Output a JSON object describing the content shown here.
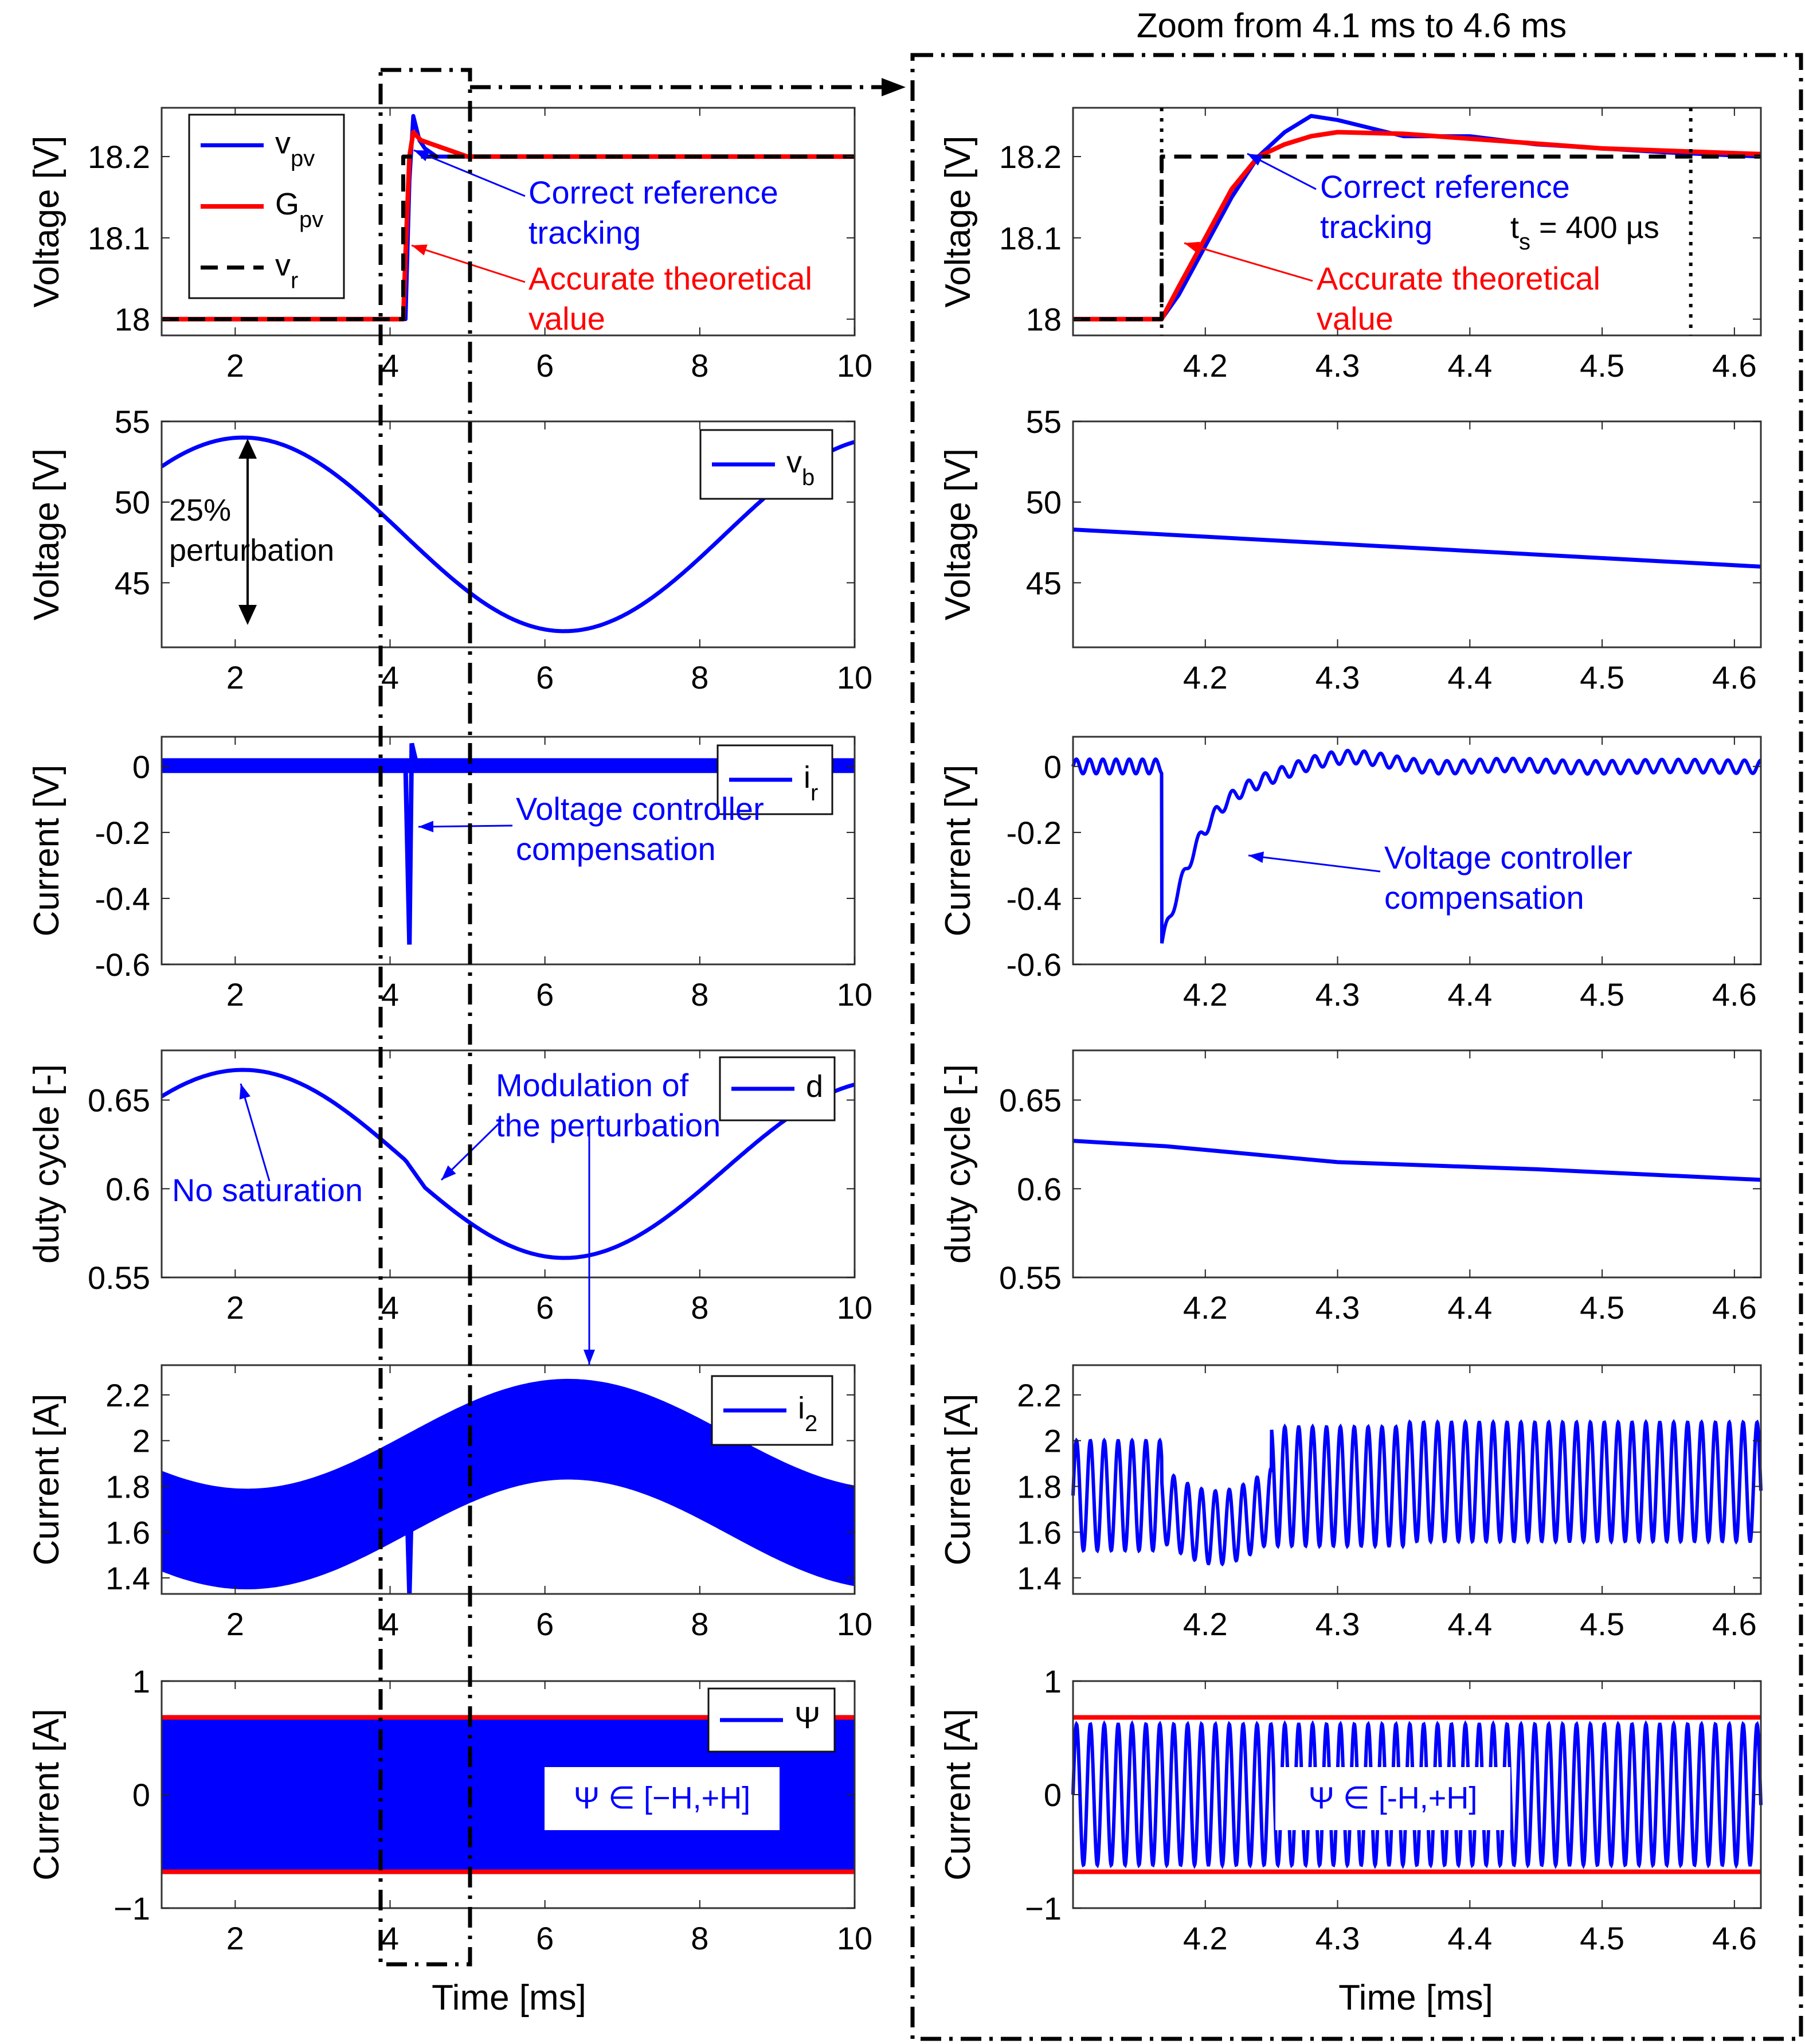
{
  "figure": {
    "zoom_title": "Zoom from 4.1 ms to 4.6 ms",
    "xlabel": "Time [ms]"
  },
  "colors": {
    "blue": "#0000ff",
    "red": "#ff0000",
    "black": "#000000"
  },
  "chart_data": [
    {
      "id": "L1",
      "type": "line",
      "ylabel": "Voltage [V]",
      "xlim": [
        1.05,
        10
      ],
      "ylim": [
        17.98,
        18.26
      ],
      "xticks": [
        2,
        4,
        6,
        8,
        10
      ],
      "xtick_labels": [
        "2",
        "4",
        "6",
        "8",
        "10"
      ],
      "yticks": [
        18,
        18.1,
        18.2
      ],
      "ytick_labels": [
        "18",
        "18.1",
        "18.2"
      ],
      "series": [
        {
          "name": "v_pv",
          "label": "v",
          "sub": "pv",
          "style": "blue",
          "x": [
            1.05,
            4.2,
            4.25,
            4.3,
            4.38,
            4.45,
            4.6,
            10
          ],
          "y": [
            18.0,
            18.0,
            18.17,
            18.25,
            18.22,
            18.21,
            18.2,
            18.2
          ]
        },
        {
          "name": "G_pv",
          "label": "G",
          "sub": "pv",
          "style": "red",
          "x": [
            1.05,
            4.17,
            4.2,
            4.25,
            4.3,
            4.4,
            5.0,
            10
          ],
          "y": [
            18.0,
            18.0,
            18.08,
            18.2,
            18.23,
            18.22,
            18.2,
            18.2
          ]
        },
        {
          "name": "v_r",
          "label": "v",
          "sub": "r",
          "style": "dash",
          "x": [
            1.05,
            4.17,
            4.17,
            10
          ],
          "y": [
            18.0,
            18.0,
            18.2,
            18.2
          ]
        }
      ],
      "annotations": [
        {
          "lines": [
            "Correct reference",
            "tracking"
          ],
          "color": "blue"
        },
        {
          "lines": [
            "Accurate theoretical",
            "value"
          ],
          "color": "red"
        }
      ]
    },
    {
      "id": "R1",
      "type": "line",
      "ylabel": "Voltage [V]",
      "xlim": [
        4.1,
        4.62
      ],
      "ylim": [
        17.98,
        18.26
      ],
      "xticks": [
        4.2,
        4.3,
        4.4,
        4.5,
        4.6
      ],
      "xtick_labels": [
        "4.2",
        "4.3",
        "4.4",
        "4.5",
        "4.6"
      ],
      "yticks": [
        18,
        18.1,
        18.2
      ],
      "ytick_labels": [
        "18",
        "18.1",
        "18.2"
      ],
      "series": [
        {
          "name": "v_pv",
          "style": "blue",
          "x": [
            4.1,
            4.167,
            4.18,
            4.2,
            4.22,
            4.24,
            4.26,
            4.28,
            4.3,
            4.35,
            4.4,
            4.45,
            4.5,
            4.55,
            4.62
          ],
          "y": [
            18.0,
            18.0,
            18.03,
            18.09,
            18.15,
            18.2,
            18.23,
            18.25,
            18.245,
            18.225,
            18.225,
            18.215,
            18.21,
            18.205,
            18.2
          ]
        },
        {
          "name": "G_pv",
          "style": "red",
          "x": [
            4.1,
            4.167,
            4.18,
            4.2,
            4.22,
            4.24,
            4.26,
            4.28,
            4.3,
            4.35,
            4.4,
            4.5,
            4.62
          ],
          "y": [
            18.0,
            18.0,
            18.04,
            18.1,
            18.16,
            18.2,
            18.215,
            18.225,
            18.23,
            18.228,
            18.222,
            18.21,
            18.203
          ]
        },
        {
          "name": "v_r",
          "style": "dash",
          "x": [
            4.1,
            4.167,
            4.167,
            4.62
          ],
          "y": [
            18.0,
            18.0,
            18.2,
            18.2
          ]
        }
      ],
      "settling_lines": [
        4.167,
        4.567
      ],
      "ts_label": {
        "t": "t",
        "sub": "s",
        "rest": " = 400 µs"
      },
      "annotations": [
        {
          "lines": [
            "Correct reference",
            "tracking"
          ],
          "color": "blue"
        },
        {
          "lines": [
            "Accurate theoretical",
            "value"
          ],
          "color": "red"
        }
      ]
    },
    {
      "id": "L2",
      "type": "line",
      "ylabel": "Voltage [V]",
      "xlim": [
        1.05,
        10
      ],
      "ylim": [
        41,
        55
      ],
      "xticks": [
        2,
        4,
        6,
        8,
        10
      ],
      "xtick_labels": [
        "2",
        "4",
        "6",
        "8",
        "10"
      ],
      "yticks": [
        45,
        50,
        55
      ],
      "ytick_labels": [
        "45",
        "50",
        "55"
      ],
      "series": [
        {
          "name": "v_b",
          "label": "v",
          "sub": "b",
          "style": "blue",
          "func": "vb"
        }
      ],
      "annotations": [
        {
          "lines": [
            "25%",
            "perturbation"
          ],
          "color": "black"
        }
      ]
    },
    {
      "id": "R2",
      "type": "line",
      "ylabel": "Voltage [V]",
      "xlim": [
        4.1,
        4.62
      ],
      "ylim": [
        41,
        55
      ],
      "xticks": [
        4.2,
        4.3,
        4.4,
        4.5,
        4.6
      ],
      "xtick_labels": [
        "4.2",
        "4.3",
        "4.4",
        "4.5",
        "4.6"
      ],
      "yticks": [
        45,
        50,
        55
      ],
      "ytick_labels": [
        "45",
        "50",
        "55"
      ],
      "series": [
        {
          "name": "v_b",
          "style": "blue",
          "x": [
            4.1,
            4.62
          ],
          "y": [
            48.3,
            46.0
          ]
        }
      ]
    },
    {
      "id": "L3",
      "type": "line",
      "ylabel": "Current [V]",
      "xlim": [
        1.05,
        10
      ],
      "ylim": [
        -0.6,
        0.09
      ],
      "xticks": [
        2,
        4,
        6,
        8,
        10
      ],
      "xtick_labels": [
        "2",
        "4",
        "6",
        "8",
        "10"
      ],
      "yticks": [
        -0.6,
        -0.4,
        -0.2,
        0
      ],
      "ytick_labels": [
        "-0.6",
        "-0.4",
        "-0.2",
        "0"
      ],
      "series": [
        {
          "name": "i_r",
          "label": "i",
          "sub": "r",
          "style": "blue",
          "band": [
            -0.02,
            0.025
          ],
          "spike": {
            "t": 4.25,
            "min": -0.54,
            "max": 0.07
          }
        }
      ],
      "annotations": [
        {
          "lines": [
            "Voltage controller",
            "compensation"
          ],
          "color": "blue"
        }
      ]
    },
    {
      "id": "R3",
      "type": "line",
      "ylabel": "Current [V]",
      "xlim": [
        4.1,
        4.62
      ],
      "ylim": [
        -0.6,
        0.09
      ],
      "xticks": [
        4.2,
        4.3,
        4.4,
        4.5,
        4.6
      ],
      "xtick_labels": [
        "4.2",
        "4.3",
        "4.4",
        "4.5",
        "4.6"
      ],
      "yticks": [
        -0.6,
        -0.4,
        -0.2,
        0
      ],
      "ytick_labels": [
        "-0.6",
        "-0.4",
        "-0.2",
        "0"
      ],
      "series": [
        {
          "name": "i_r",
          "style": "blue",
          "func": "ir_zoom"
        }
      ],
      "annotations": [
        {
          "lines": [
            "Voltage controller",
            "compensation"
          ],
          "color": "blue"
        }
      ]
    },
    {
      "id": "L4",
      "type": "line",
      "ylabel": "duty cycle [-]",
      "xlim": [
        1.05,
        10
      ],
      "ylim": [
        0.55,
        0.678
      ],
      "xticks": [
        2,
        4,
        6,
        8,
        10
      ],
      "xtick_labels": [
        "2",
        "4",
        "6",
        "8",
        "10"
      ],
      "yticks": [
        0.55,
        0.6,
        0.65
      ],
      "ytick_labels": [
        "0.55",
        "0.6",
        "0.65"
      ],
      "series": [
        {
          "name": "d",
          "label": "d",
          "style": "blue",
          "func": "duty"
        }
      ],
      "annotations": [
        {
          "lines": [
            "No saturation"
          ],
          "color": "blue"
        },
        {
          "lines": [
            "Modulation of",
            "the perturbation"
          ],
          "color": "blue"
        }
      ]
    },
    {
      "id": "R4",
      "type": "line",
      "ylabel": "duty cycle [-]",
      "xlim": [
        4.1,
        4.62
      ],
      "ylim": [
        0.55,
        0.678
      ],
      "xticks": [
        4.2,
        4.3,
        4.4,
        4.5,
        4.6
      ],
      "xtick_labels": [
        "4.2",
        "4.3",
        "4.4",
        "4.5",
        "4.6"
      ],
      "yticks": [
        0.55,
        0.6,
        0.65
      ],
      "ytick_labels": [
        "0.55",
        "0.6",
        "0.65"
      ],
      "series": [
        {
          "name": "d",
          "style": "blue",
          "x": [
            4.1,
            4.17,
            4.3,
            4.45,
            4.62
          ],
          "y": [
            0.627,
            0.624,
            0.615,
            0.611,
            0.605
          ]
        }
      ]
    },
    {
      "id": "L5",
      "type": "line",
      "ylabel": "Current [A]",
      "xlim": [
        1.05,
        10
      ],
      "ylim": [
        1.33,
        2.33
      ],
      "xticks": [
        2,
        4,
        6,
        8,
        10
      ],
      "xtick_labels": [
        "2",
        "4",
        "6",
        "8",
        "10"
      ],
      "yticks": [
        1.4,
        1.6,
        1.8,
        2,
        2.2
      ],
      "ytick_labels": [
        "1.4",
        "1.6",
        "1.8",
        "2",
        "2.2"
      ],
      "series": [
        {
          "name": "i_2",
          "label": "i",
          "sub": "2",
          "style": "blue",
          "func": "i2_band",
          "spike": {
            "t": 4.25,
            "min": 1.33,
            "max": 2.02
          }
        }
      ]
    },
    {
      "id": "R5",
      "type": "line",
      "ylabel": "Current [A]",
      "xlim": [
        4.1,
        4.62
      ],
      "ylim": [
        1.33,
        2.33
      ],
      "xticks": [
        4.2,
        4.3,
        4.4,
        4.5,
        4.6
      ],
      "xtick_labels": [
        "4.2",
        "4.3",
        "4.4",
        "4.5",
        "4.6"
      ],
      "yticks": [
        1.4,
        1.6,
        1.8,
        2,
        2.2
      ],
      "ytick_labels": [
        "1.4",
        "1.6",
        "1.8",
        "2",
        "2.2"
      ],
      "series": [
        {
          "name": "i_2",
          "style": "blue",
          "func": "i2_zoom"
        }
      ]
    },
    {
      "id": "L6",
      "type": "line",
      "ylabel": "Current [A]",
      "xlim": [
        1.05,
        10
      ],
      "ylim": [
        -1,
        1
      ],
      "xticks": [
        2,
        4,
        6,
        8,
        10
      ],
      "xtick_labels": [
        "2",
        "4",
        "6",
        "8",
        "10"
      ],
      "yticks": [
        -1,
        0,
        1
      ],
      "ytick_labels": [
        "−1",
        "0",
        "1"
      ],
      "series": [
        {
          "name": "Psi",
          "label": "Ψ",
          "style": "blue",
          "band": [
            -0.7,
            0.7
          ]
        },
        {
          "name": "+H",
          "style": "red",
          "x": [
            1.05,
            10
          ],
          "y": [
            0.68,
            0.68
          ]
        },
        {
          "name": "-H",
          "style": "red",
          "x": [
            1.05,
            10
          ],
          "y": [
            -0.68,
            -0.68
          ]
        }
      ],
      "box_label": "Ψ ∈ [−H,+H]"
    },
    {
      "id": "R6",
      "type": "line",
      "ylabel": "Current [A]",
      "xlim": [
        4.1,
        4.62
      ],
      "ylim": [
        -1,
        1
      ],
      "xticks": [
        4.2,
        4.3,
        4.4,
        4.5,
        4.6
      ],
      "xtick_labels": [
        "4.2",
        "4.3",
        "4.4",
        "4.5",
        "4.6"
      ],
      "yticks": [
        -1,
        0,
        1
      ],
      "ytick_labels": [
        "−1",
        "0",
        "1"
      ],
      "series": [
        {
          "name": "Psi",
          "style": "blue",
          "func": "psi_zoom"
        },
        {
          "name": "+H",
          "style": "red",
          "x": [
            4.1,
            4.62
          ],
          "y": [
            0.68,
            0.68
          ]
        },
        {
          "name": "-H",
          "style": "red",
          "x": [
            4.1,
            4.62
          ],
          "y": [
            -0.68,
            -0.68
          ]
        }
      ],
      "box_label": "Ψ ∈ [-H,+H]"
    }
  ]
}
